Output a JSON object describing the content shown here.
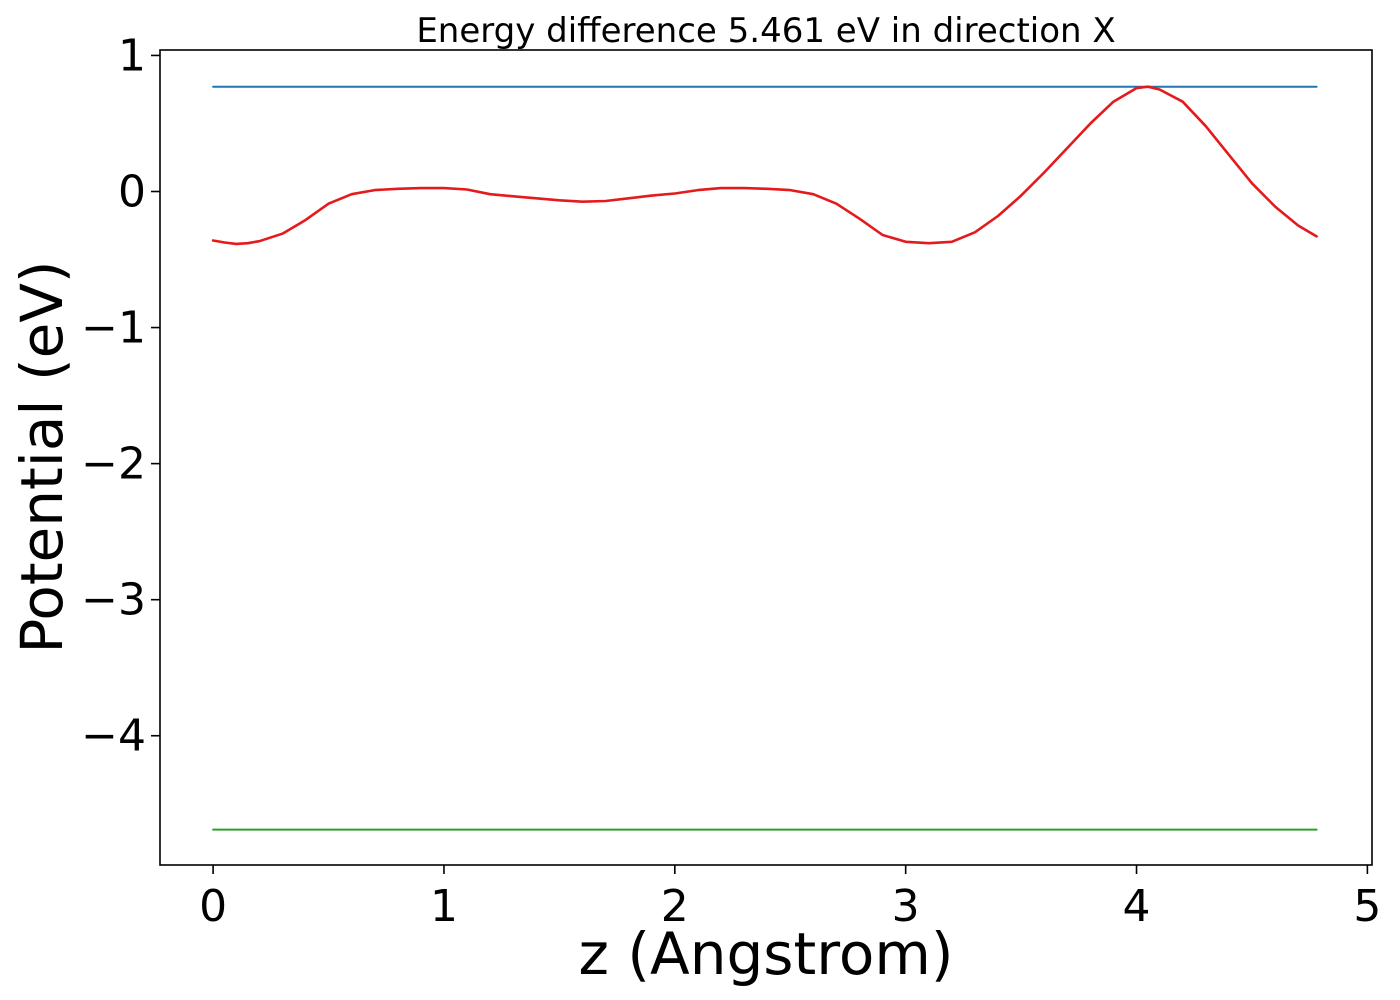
{
  "chart_data": {
    "type": "line",
    "title": "Energy difference 5.461 eV in direction X",
    "xlabel": "z (Angstrom)",
    "ylabel": "Potential (eV)",
    "xlim": [
      -0.23,
      5.02
    ],
    "ylim": [
      -4.95,
      1.04
    ],
    "xticks": [
      0,
      1,
      2,
      3,
      4,
      5
    ],
    "xtick_labels": [
      "0",
      "1",
      "2",
      "3",
      "4",
      "5"
    ],
    "yticks": [
      1,
      0,
      -1,
      -2,
      -3,
      -4
    ],
    "ytick_labels": [
      "1",
      "0",
      "−1",
      "−2",
      "−3",
      "−4"
    ],
    "grid": false,
    "series": [
      {
        "color": "#1f77b4",
        "x": [
          0,
          4.78
        ],
        "y": [
          0.77,
          0.77
        ]
      },
      {
        "color": "#2ca02c",
        "x": [
          0,
          4.78
        ],
        "y": [
          -4.69,
          -4.69
        ]
      },
      {
        "color": "#e41a1c",
        "x": [
          0,
          0.05,
          0.1,
          0.15,
          0.2,
          0.3,
          0.4,
          0.5,
          0.6,
          0.7,
          0.8,
          0.9,
          1.0,
          1.1,
          1.2,
          1.3,
          1.4,
          1.5,
          1.6,
          1.7,
          1.8,
          1.9,
          2.0,
          2.1,
          2.2,
          2.3,
          2.4,
          2.5,
          2.6,
          2.7,
          2.8,
          2.9,
          3.0,
          3.1,
          3.2,
          3.3,
          3.4,
          3.5,
          3.6,
          3.7,
          3.8,
          3.9,
          4.0,
          4.05,
          4.1,
          4.2,
          4.3,
          4.4,
          4.5,
          4.6,
          4.7,
          4.78
        ],
        "y": [
          -0.36,
          -0.375,
          -0.385,
          -0.38,
          -0.365,
          -0.31,
          -0.21,
          -0.09,
          -0.02,
          0.01,
          0.02,
          0.025,
          0.025,
          0.015,
          -0.02,
          -0.035,
          -0.05,
          -0.065,
          -0.075,
          -0.07,
          -0.05,
          -0.03,
          -0.015,
          0.01,
          0.025,
          0.025,
          0.02,
          0.01,
          -0.02,
          -0.09,
          -0.2,
          -0.32,
          -0.37,
          -0.38,
          -0.37,
          -0.3,
          -0.18,
          -0.03,
          0.14,
          0.32,
          0.5,
          0.66,
          0.76,
          0.77,
          0.75,
          0.66,
          0.48,
          0.27,
          0.06,
          -0.11,
          -0.25,
          -0.33
        ]
      }
    ]
  }
}
